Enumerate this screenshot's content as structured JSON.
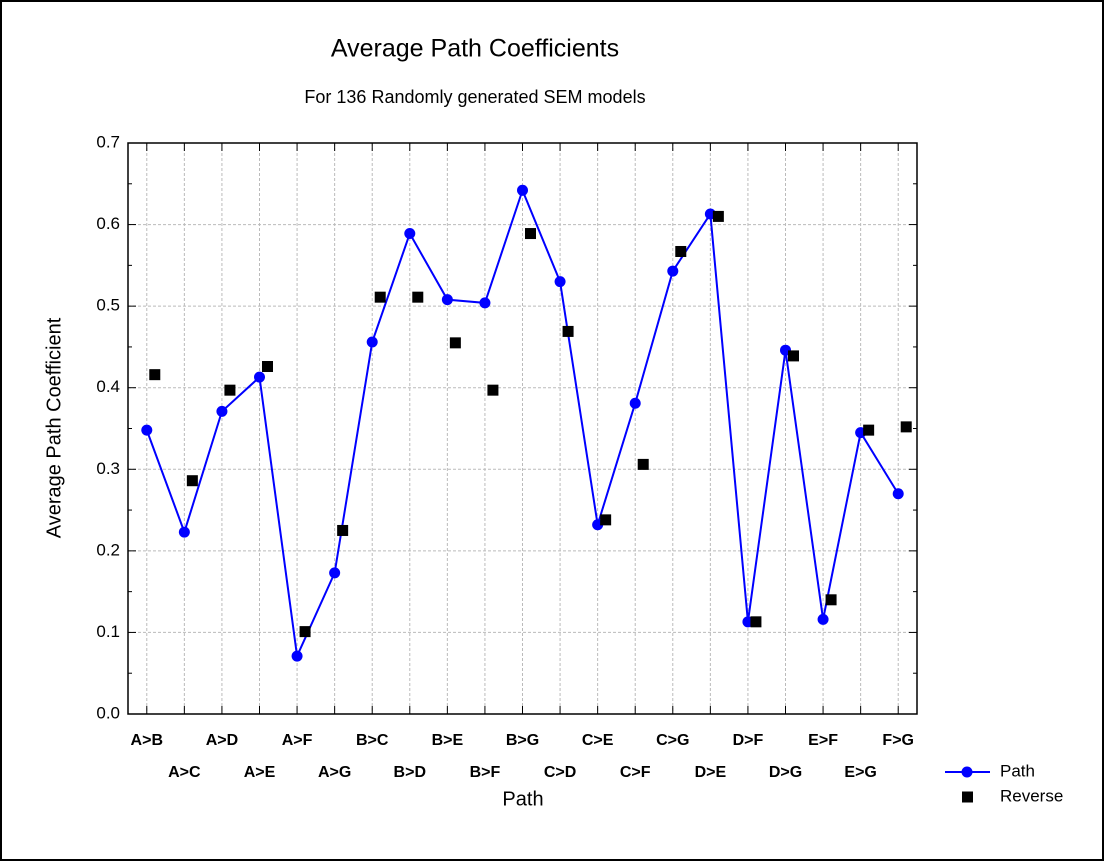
{
  "chart_data": {
    "type": "line",
    "title": "Average Path Coefficients",
    "subtitle": "For 136 Randomly generated SEM models",
    "x_label": "Path",
    "y_label": "Average Path Coefficient",
    "categories": [
      "A>B",
      "A>C",
      "A>D",
      "A>E",
      "A>F",
      "A>G",
      "B>C",
      "B>D",
      "B>E",
      "B>F",
      "B>G",
      "C>D",
      "C>E",
      "C>F",
      "C>G",
      "D>E",
      "D>F",
      "D>G",
      "E>F",
      "E>G",
      "F>G"
    ],
    "series": [
      {
        "name": "Path",
        "color": "#0000ff",
        "marker": "circle",
        "line": true,
        "values": [
          0.348,
          0.223,
          0.371,
          0.413,
          0.071,
          0.173,
          0.456,
          0.589,
          0.508,
          0.504,
          0.642,
          0.53,
          0.232,
          0.381,
          0.543,
          0.613,
          0.113,
          0.446,
          0.116,
          0.345,
          0.27
        ]
      },
      {
        "name": "Reverse",
        "color": "#000000",
        "marker": "square",
        "line": false,
        "values": [
          0.416,
          0.286,
          0.397,
          0.426,
          0.101,
          0.225,
          0.511,
          0.511,
          0.455,
          0.397,
          0.589,
          0.469,
          0.238,
          0.306,
          0.567,
          0.61,
          0.113,
          0.439,
          0.14,
          0.348,
          0.352
        ]
      }
    ],
    "ylim": [
      0,
      0.7
    ],
    "yticks": [
      {
        "value": 0,
        "label": "0.0"
      },
      0.1,
      0.2,
      0.3,
      0.4,
      0.5,
      0.6,
      0.7
    ],
    "grid": true,
    "legend": "bottom-right"
  }
}
